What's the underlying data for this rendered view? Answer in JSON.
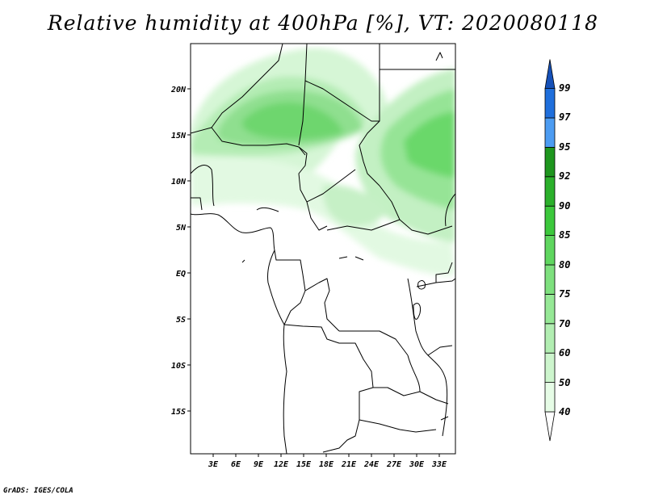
{
  "title": "Relative humidity at 400hPa [%], VT: 2020080118",
  "credit": "GrADS: IGES/COLA",
  "map": {
    "lon_range": [
      0,
      36
    ],
    "lat_range": [
      -20,
      25
    ],
    "lat_ticks": [
      "20N",
      "15N",
      "10N",
      "5N",
      "EQ",
      "5S",
      "10S",
      "15S"
    ],
    "lon_ticks": [
      "3E",
      "6E",
      "9E",
      "12E",
      "15E",
      "18E",
      "21E",
      "24E",
      "27E",
      "30E",
      "33E"
    ]
  },
  "colorbar": {
    "levels": [
      "40",
      "50",
      "60",
      "70",
      "75",
      "80",
      "85",
      "90",
      "92",
      "95",
      "97",
      "99"
    ],
    "colors": [
      "#ffffff",
      "#e6fce6",
      "#cdf5cd",
      "#b2eeb2",
      "#96e896",
      "#7ee07e",
      "#5fd65f",
      "#3cc83c",
      "#2bb02b",
      "#1e961e",
      "#4c9cf2",
      "#1f6fdc",
      "#1550b8"
    ]
  }
}
